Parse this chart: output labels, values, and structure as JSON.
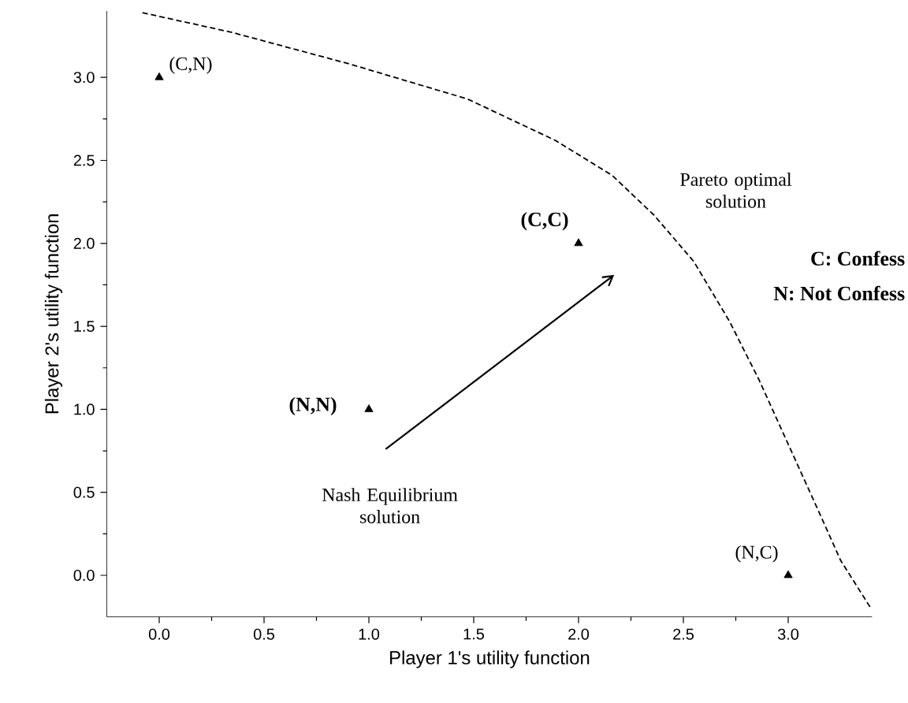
{
  "chart_data": {
    "type": "scatter",
    "xlabel": "Player 1's utility function",
    "ylabel": "Player 2's utility function",
    "xlim": [
      -0.25,
      3.4
    ],
    "ylim": [
      -0.25,
      3.4
    ],
    "xticks": [
      {
        "value": 0,
        "label": "0.0"
      },
      {
        "value": 0.5,
        "label": "0.5"
      },
      {
        "value": 1,
        "label": "1.0"
      },
      {
        "value": 1.5,
        "label": "1.5"
      },
      {
        "value": 2,
        "label": "2.0"
      },
      {
        "value": 2.5,
        "label": "2.5"
      },
      {
        "value": 3,
        "label": "3.0"
      }
    ],
    "yticks": [
      {
        "value": 0,
        "label": "0.0"
      },
      {
        "value": 0.5,
        "label": "0.5"
      },
      {
        "value": 1,
        "label": "1.0"
      },
      {
        "value": 1.5,
        "label": "1.5"
      },
      {
        "value": 2,
        "label": "2.0"
      },
      {
        "value": 2.5,
        "label": "2.5"
      },
      {
        "value": 3,
        "label": "3.0"
      }
    ],
    "marker": "triangle",
    "series": [
      {
        "color": "#000000",
        "x": [
          0,
          1,
          2,
          3
        ],
        "values": [
          3,
          1,
          2,
          0
        ]
      },
      {
        "type": "line",
        "color": "#000000",
        "line_style": "dashed",
        "marker": "none",
        "x": [
          -0.08,
          0.35,
          0.91,
          1.47,
          1.89,
          2.16,
          2.36,
          2.55,
          2.72,
          2.86,
          3.0,
          3.14,
          3.25,
          3.39
        ],
        "values": [
          3.39,
          3.27,
          3.08,
          2.87,
          2.62,
          2.41,
          2.17,
          1.89,
          1.53,
          1.18,
          0.79,
          0.4,
          0.09,
          -0.19
        ]
      }
    ],
    "annotations": [
      {
        "text": "(C,N)",
        "x": 0,
        "y": 3
      },
      {
        "text": "(N,N)",
        "x": 1,
        "y": 1
      },
      {
        "text": "(C,C)",
        "x": 2,
        "y": 2
      },
      {
        "text": "(N,C)",
        "x": 3,
        "y": 0
      },
      "Pareto optimal solution",
      "Nash Equilibrium solution",
      "C: Confess",
      "N: Not Confess"
    ]
  }
}
